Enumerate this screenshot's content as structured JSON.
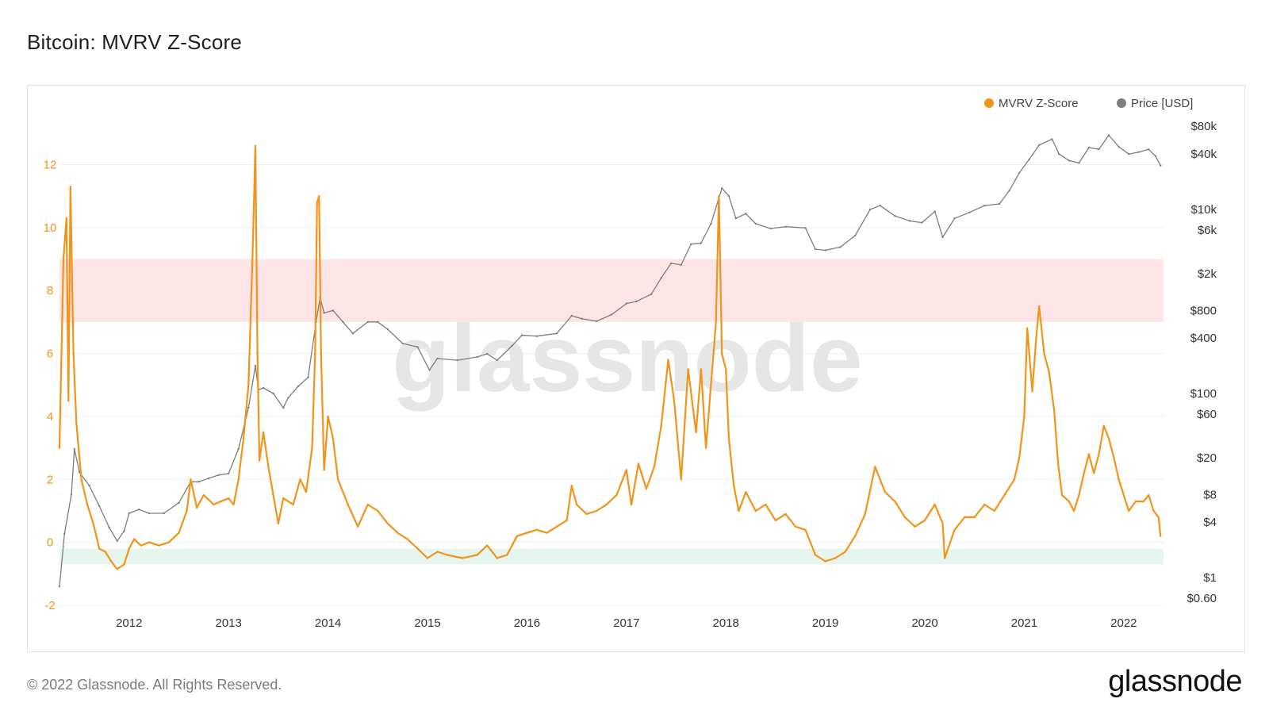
{
  "title": "Bitcoin: MVRV Z-Score",
  "footer": "© 2022 Glassnode. All Rights Reserved.",
  "brand": "glassnode",
  "watermark": "glassnode",
  "colors": {
    "zscore": "#f2931a",
    "price": "#7d7d7d",
    "band_red": "#fde4e6",
    "band_green": "#e6f6ee",
    "grid": "#efefef"
  },
  "chart_data": {
    "type": "line",
    "title": "Bitcoin: MVRV Z-Score",
    "legend_position": "top-right",
    "grid": true,
    "x_axis": {
      "range": [
        2011.3,
        2022.4
      ],
      "ticks": [
        "2012",
        "2013",
        "2014",
        "2015",
        "2016",
        "2017",
        "2018",
        "2019",
        "2020",
        "2021",
        "2022"
      ]
    },
    "y_left": {
      "range": [
        -2,
        13.5
      ],
      "ticks": [
        "-2",
        "0",
        "2",
        "4",
        "6",
        "8",
        "10",
        "12"
      ]
    },
    "y_right": {
      "scale": "log",
      "range": [
        0.5,
        100000
      ],
      "ticks": [
        {
          "label": "$80k",
          "value": 80000
        },
        {
          "label": "$40k",
          "value": 40000
        },
        {
          "label": "$10k",
          "value": 10000
        },
        {
          "label": "$6k",
          "value": 6000
        },
        {
          "label": "$2k",
          "value": 2000
        },
        {
          "label": "$800",
          "value": 800
        },
        {
          "label": "$400",
          "value": 400
        },
        {
          "label": "$100",
          "value": 100
        },
        {
          "label": "$60",
          "value": 60
        },
        {
          "label": "$20",
          "value": 20
        },
        {
          "label": "$8",
          "value": 8
        },
        {
          "label": "$4",
          "value": 4
        },
        {
          "label": "$1",
          "value": 1
        },
        {
          "label": "$0.60",
          "value": 0.6
        }
      ]
    },
    "bands": [
      {
        "from": 7,
        "to": 9,
        "color": "#fde4e6"
      },
      {
        "from": -0.7,
        "to": -0.2,
        "color": "#e6f6ee"
      }
    ],
    "series": [
      {
        "name": "MVRV Z-Score",
        "axis": "left",
        "color": "#f2931a",
        "points": [
          [
            2011.3,
            3
          ],
          [
            2011.34,
            9.0
          ],
          [
            2011.37,
            10.3
          ],
          [
            2011.39,
            4.5
          ],
          [
            2011.41,
            11.3
          ],
          [
            2011.44,
            6.0
          ],
          [
            2011.47,
            3.8
          ],
          [
            2011.52,
            2.0
          ],
          [
            2011.58,
            1.2
          ],
          [
            2011.64,
            0.6
          ],
          [
            2011.7,
            -0.2
          ],
          [
            2011.76,
            -0.3
          ],
          [
            2011.82,
            -0.6
          ],
          [
            2011.88,
            -0.85
          ],
          [
            2011.95,
            -0.7
          ],
          [
            2012.0,
            -0.2
          ],
          [
            2012.05,
            0.1
          ],
          [
            2012.12,
            -0.1
          ],
          [
            2012.2,
            0.0
          ],
          [
            2012.3,
            -0.1
          ],
          [
            2012.4,
            0.0
          ],
          [
            2012.5,
            0.3
          ],
          [
            2012.58,
            1.0
          ],
          [
            2012.62,
            2.0
          ],
          [
            2012.68,
            1.1
          ],
          [
            2012.75,
            1.5
          ],
          [
            2012.85,
            1.2
          ],
          [
            2012.92,
            1.3
          ],
          [
            2013.0,
            1.4
          ],
          [
            2013.05,
            1.2
          ],
          [
            2013.1,
            2.0
          ],
          [
            2013.15,
            3.3
          ],
          [
            2013.2,
            5.0
          ],
          [
            2013.24,
            9.0
          ],
          [
            2013.27,
            12.6
          ],
          [
            2013.29,
            6.0
          ],
          [
            2013.31,
            2.6
          ],
          [
            2013.35,
            3.5
          ],
          [
            2013.4,
            2.4
          ],
          [
            2013.45,
            1.5
          ],
          [
            2013.5,
            0.6
          ],
          [
            2013.55,
            1.4
          ],
          [
            2013.65,
            1.2
          ],
          [
            2013.72,
            2.0
          ],
          [
            2013.78,
            1.6
          ],
          [
            2013.84,
            3.0
          ],
          [
            2013.87,
            6.0
          ],
          [
            2013.89,
            10.8
          ],
          [
            2013.91,
            11.0
          ],
          [
            2013.93,
            6.0
          ],
          [
            2013.96,
            2.3
          ],
          [
            2014.0,
            4.0
          ],
          [
            2014.05,
            3.3
          ],
          [
            2014.1,
            2.0
          ],
          [
            2014.2,
            1.2
          ],
          [
            2014.3,
            0.5
          ],
          [
            2014.4,
            1.2
          ],
          [
            2014.5,
            1.0
          ],
          [
            2014.6,
            0.6
          ],
          [
            2014.7,
            0.3
          ],
          [
            2014.8,
            0.1
          ],
          [
            2014.9,
            -0.2
          ],
          [
            2015.0,
            -0.5
          ],
          [
            2015.1,
            -0.3
          ],
          [
            2015.2,
            -0.4
          ],
          [
            2015.35,
            -0.5
          ],
          [
            2015.5,
            -0.4
          ],
          [
            2015.6,
            -0.1
          ],
          [
            2015.7,
            -0.5
          ],
          [
            2015.8,
            -0.4
          ],
          [
            2015.9,
            0.2
          ],
          [
            2016.0,
            0.3
          ],
          [
            2016.1,
            0.4
          ],
          [
            2016.2,
            0.3
          ],
          [
            2016.3,
            0.5
          ],
          [
            2016.4,
            0.7
          ],
          [
            2016.45,
            1.8
          ],
          [
            2016.5,
            1.2
          ],
          [
            2016.6,
            0.9
          ],
          [
            2016.7,
            1.0
          ],
          [
            2016.8,
            1.2
          ],
          [
            2016.9,
            1.5
          ],
          [
            2017.0,
            2.3
          ],
          [
            2017.05,
            1.2
          ],
          [
            2017.12,
            2.5
          ],
          [
            2017.2,
            1.7
          ],
          [
            2017.28,
            2.4
          ],
          [
            2017.35,
            3.7
          ],
          [
            2017.42,
            5.8
          ],
          [
            2017.48,
            4.5
          ],
          [
            2017.55,
            2.0
          ],
          [
            2017.62,
            5.5
          ],
          [
            2017.7,
            3.5
          ],
          [
            2017.75,
            5.5
          ],
          [
            2017.8,
            3.0
          ],
          [
            2017.85,
            5.0
          ],
          [
            2017.9,
            7.0
          ],
          [
            2017.93,
            11.0
          ],
          [
            2017.96,
            6.0
          ],
          [
            2018.0,
            5.5
          ],
          [
            2018.03,
            3.3
          ],
          [
            2018.08,
            1.8
          ],
          [
            2018.13,
            1.0
          ],
          [
            2018.2,
            1.6
          ],
          [
            2018.3,
            1.0
          ],
          [
            2018.4,
            1.2
          ],
          [
            2018.5,
            0.7
          ],
          [
            2018.6,
            0.9
          ],
          [
            2018.7,
            0.5
          ],
          [
            2018.8,
            0.4
          ],
          [
            2018.9,
            -0.4
          ],
          [
            2019.0,
            -0.6
          ],
          [
            2019.1,
            -0.5
          ],
          [
            2019.2,
            -0.3
          ],
          [
            2019.3,
            0.2
          ],
          [
            2019.4,
            0.9
          ],
          [
            2019.5,
            2.4
          ],
          [
            2019.6,
            1.6
          ],
          [
            2019.7,
            1.3
          ],
          [
            2019.8,
            0.8
          ],
          [
            2019.9,
            0.5
          ],
          [
            2020.0,
            0.7
          ],
          [
            2020.1,
            1.2
          ],
          [
            2020.18,
            0.6
          ],
          [
            2020.2,
            -0.5
          ],
          [
            2020.3,
            0.4
          ],
          [
            2020.4,
            0.8
          ],
          [
            2020.5,
            0.8
          ],
          [
            2020.6,
            1.2
          ],
          [
            2020.7,
            1.0
          ],
          [
            2020.8,
            1.5
          ],
          [
            2020.9,
            2.0
          ],
          [
            2020.95,
            2.7
          ],
          [
            2021.0,
            4.0
          ],
          [
            2021.03,
            6.8
          ],
          [
            2021.08,
            4.8
          ],
          [
            2021.12,
            6.5
          ],
          [
            2021.15,
            7.5
          ],
          [
            2021.2,
            6.0
          ],
          [
            2021.25,
            5.4
          ],
          [
            2021.3,
            4.2
          ],
          [
            2021.34,
            2.5
          ],
          [
            2021.38,
            1.5
          ],
          [
            2021.45,
            1.3
          ],
          [
            2021.5,
            1.0
          ],
          [
            2021.55,
            1.5
          ],
          [
            2021.6,
            2.2
          ],
          [
            2021.65,
            2.8
          ],
          [
            2021.7,
            2.2
          ],
          [
            2021.75,
            2.8
          ],
          [
            2021.8,
            3.7
          ],
          [
            2021.85,
            3.3
          ],
          [
            2021.9,
            2.7
          ],
          [
            2021.95,
            2.0
          ],
          [
            2022.0,
            1.5
          ],
          [
            2022.05,
            1.0
          ],
          [
            2022.12,
            1.3
          ],
          [
            2022.2,
            1.3
          ],
          [
            2022.25,
            1.5
          ],
          [
            2022.3,
            1.0
          ],
          [
            2022.35,
            0.8
          ],
          [
            2022.37,
            0.2
          ]
        ]
      },
      {
        "name": "Price [USD]",
        "axis": "right",
        "color": "#7d7d7d",
        "points": [
          [
            2011.3,
            0.8
          ],
          [
            2011.35,
            3
          ],
          [
            2011.42,
            8
          ],
          [
            2011.45,
            25
          ],
          [
            2011.5,
            14
          ],
          [
            2011.6,
            10
          ],
          [
            2011.7,
            6
          ],
          [
            2011.8,
            3.5
          ],
          [
            2011.88,
            2.5
          ],
          [
            2011.95,
            3.2
          ],
          [
            2012.0,
            5
          ],
          [
            2012.1,
            5.5
          ],
          [
            2012.2,
            5
          ],
          [
            2012.35,
            5
          ],
          [
            2012.5,
            6.5
          ],
          [
            2012.62,
            11
          ],
          [
            2012.7,
            11
          ],
          [
            2012.8,
            12
          ],
          [
            2012.9,
            13
          ],
          [
            2013.0,
            13.5
          ],
          [
            2013.1,
            25
          ],
          [
            2013.2,
            70
          ],
          [
            2013.27,
            200
          ],
          [
            2013.3,
            110
          ],
          [
            2013.35,
            115
          ],
          [
            2013.45,
            100
          ],
          [
            2013.55,
            70
          ],
          [
            2013.6,
            90
          ],
          [
            2013.7,
            120
          ],
          [
            2013.8,
            150
          ],
          [
            2013.88,
            600
          ],
          [
            2013.92,
            1100
          ],
          [
            2013.96,
            750
          ],
          [
            2014.05,
            800
          ],
          [
            2014.15,
            600
          ],
          [
            2014.25,
            450
          ],
          [
            2014.4,
            600
          ],
          [
            2014.5,
            600
          ],
          [
            2014.6,
            500
          ],
          [
            2014.75,
            350
          ],
          [
            2014.9,
            320
          ],
          [
            2015.02,
            180
          ],
          [
            2015.1,
            240
          ],
          [
            2015.3,
            230
          ],
          [
            2015.5,
            250
          ],
          [
            2015.6,
            270
          ],
          [
            2015.7,
            230
          ],
          [
            2015.85,
            330
          ],
          [
            2015.95,
            430
          ],
          [
            2016.1,
            420
          ],
          [
            2016.3,
            450
          ],
          [
            2016.45,
            700
          ],
          [
            2016.55,
            650
          ],
          [
            2016.7,
            610
          ],
          [
            2016.85,
            720
          ],
          [
            2017.0,
            950
          ],
          [
            2017.1,
            1000
          ],
          [
            2017.25,
            1200
          ],
          [
            2017.35,
            1800
          ],
          [
            2017.45,
            2600
          ],
          [
            2017.55,
            2500
          ],
          [
            2017.65,
            4200
          ],
          [
            2017.75,
            4300
          ],
          [
            2017.85,
            7000
          ],
          [
            2017.96,
            17000
          ],
          [
            2018.03,
            14000
          ],
          [
            2018.1,
            8000
          ],
          [
            2018.2,
            9000
          ],
          [
            2018.3,
            7000
          ],
          [
            2018.45,
            6200
          ],
          [
            2018.6,
            6500
          ],
          [
            2018.8,
            6300
          ],
          [
            2018.9,
            3700
          ],
          [
            2019.0,
            3600
          ],
          [
            2019.15,
            3900
          ],
          [
            2019.3,
            5200
          ],
          [
            2019.45,
            10000
          ],
          [
            2019.55,
            11000
          ],
          [
            2019.7,
            8500
          ],
          [
            2019.85,
            7500
          ],
          [
            2019.97,
            7200
          ],
          [
            2020.1,
            9500
          ],
          [
            2020.18,
            5000
          ],
          [
            2020.3,
            8000
          ],
          [
            2020.45,
            9300
          ],
          [
            2020.6,
            11000
          ],
          [
            2020.75,
            11500
          ],
          [
            2020.85,
            16000
          ],
          [
            2020.95,
            25000
          ],
          [
            2021.05,
            35000
          ],
          [
            2021.15,
            50000
          ],
          [
            2021.28,
            58000
          ],
          [
            2021.35,
            40000
          ],
          [
            2021.45,
            34000
          ],
          [
            2021.55,
            32000
          ],
          [
            2021.65,
            47000
          ],
          [
            2021.75,
            45000
          ],
          [
            2021.85,
            64000
          ],
          [
            2021.95,
            48000
          ],
          [
            2022.05,
            40000
          ],
          [
            2022.15,
            42000
          ],
          [
            2022.25,
            45000
          ],
          [
            2022.32,
            38000
          ],
          [
            2022.37,
            30000
          ]
        ]
      }
    ]
  }
}
